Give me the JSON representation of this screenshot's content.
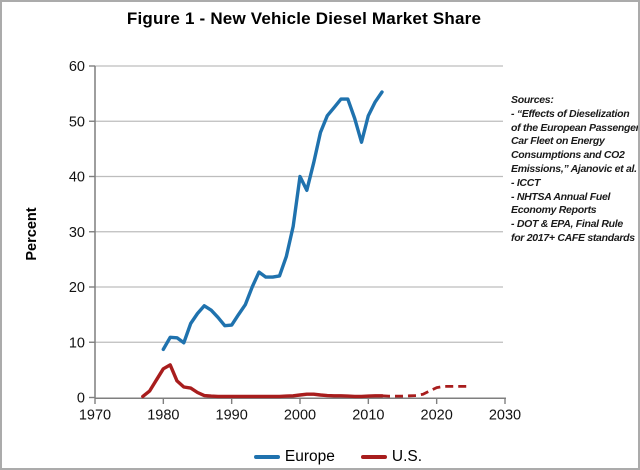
{
  "title": "Figure 1 - New Vehicle Diesel Market Share",
  "y_axis_title": "Percent",
  "legend": {
    "europe": "Europe",
    "us": "U.S."
  },
  "sources_text": "Sources:\n- “Effects of Dieselization\nof the European Passenger\nCar Fleet on Energy\nConsumptions and CO2\nEmissions,” Ajanovic et al.\n- ICCT\n- NHTSA Annual Fuel\nEconomy Reports\n- DOT & EPA, Final Rule\nfor 2017+ CAFE standards",
  "colors": {
    "europe_blue": "#1F72AE",
    "us_red": "#A81D1D",
    "gridline_gray": "#bdbdbd",
    "axis_gray": "#7f7f7f"
  },
  "chart_data": {
    "type": "line",
    "title": "Figure 1 - New Vehicle Diesel Market Share",
    "xlabel": "",
    "ylabel": "Percent",
    "xlim": [
      1970,
      2030
    ],
    "ylim": [
      0,
      60
    ],
    "x_ticks": [
      1970,
      1980,
      1990,
      2000,
      2010,
      2020,
      2030
    ],
    "y_ticks": [
      0,
      10,
      20,
      30,
      40,
      50,
      60
    ],
    "grid": "horizontal",
    "legend_position": "bottom",
    "series": [
      {
        "name": "Europe",
        "color": "#1F72AE",
        "style": "solid",
        "points": [
          [
            1980,
            8.7
          ],
          [
            1981,
            10.9
          ],
          [
            1982,
            10.8
          ],
          [
            1983,
            9.9
          ],
          [
            1984,
            13.4
          ],
          [
            1985,
            15.2
          ],
          [
            1986,
            16.6
          ],
          [
            1987,
            15.8
          ],
          [
            1988,
            14.5
          ],
          [
            1989,
            13.0
          ],
          [
            1990,
            13.1
          ],
          [
            1991,
            15.0
          ],
          [
            1992,
            16.8
          ],
          [
            1993,
            20.0
          ],
          [
            1994,
            22.7
          ],
          [
            1995,
            21.8
          ],
          [
            1996,
            21.8
          ],
          [
            1997,
            22.0
          ],
          [
            1998,
            25.5
          ],
          [
            1999,
            31.0
          ],
          [
            2000,
            40.0
          ],
          [
            2001,
            37.5
          ],
          [
            2002,
            42.5
          ],
          [
            2003,
            48.0
          ],
          [
            2004,
            51.0
          ],
          [
            2005,
            52.5
          ],
          [
            2006,
            54.0
          ],
          [
            2007,
            54.0
          ],
          [
            2008,
            50.5
          ],
          [
            2009,
            46.2
          ],
          [
            2010,
            51.0
          ],
          [
            2011,
            53.5
          ],
          [
            2012,
            55.3
          ]
        ]
      },
      {
        "name": "U.S.",
        "color": "#A81D1D",
        "style": "solid",
        "points": [
          [
            1977,
            0.2
          ],
          [
            1978,
            1.2
          ],
          [
            1979,
            3.2
          ],
          [
            1980,
            5.2
          ],
          [
            1981,
            5.9
          ],
          [
            1982,
            3.0
          ],
          [
            1983,
            1.9
          ],
          [
            1984,
            1.7
          ],
          [
            1985,
            0.9
          ],
          [
            1986,
            0.35
          ],
          [
            1987,
            0.25
          ],
          [
            1988,
            0.2
          ],
          [
            1989,
            0.2
          ],
          [
            1990,
            0.2
          ],
          [
            1991,
            0.2
          ],
          [
            1992,
            0.2
          ],
          [
            1993,
            0.2
          ],
          [
            1994,
            0.2
          ],
          [
            1995,
            0.2
          ],
          [
            1996,
            0.2
          ],
          [
            1997,
            0.2
          ],
          [
            1998,
            0.25
          ],
          [
            1999,
            0.3
          ],
          [
            2000,
            0.45
          ],
          [
            2001,
            0.6
          ],
          [
            2002,
            0.6
          ],
          [
            2003,
            0.45
          ],
          [
            2004,
            0.35
          ],
          [
            2005,
            0.3
          ],
          [
            2006,
            0.3
          ],
          [
            2007,
            0.25
          ],
          [
            2008,
            0.2
          ],
          [
            2009,
            0.2
          ],
          [
            2010,
            0.25
          ],
          [
            2011,
            0.3
          ],
          [
            2012,
            0.3
          ]
        ]
      },
      {
        "name": "U.S. projection",
        "color": "#A81D1D",
        "style": "dashed",
        "points": [
          [
            2012,
            0.3
          ],
          [
            2013,
            0.25
          ],
          [
            2014,
            0.25
          ],
          [
            2015,
            0.25
          ],
          [
            2016,
            0.3
          ],
          [
            2017,
            0.35
          ],
          [
            2018,
            0.6
          ],
          [
            2019,
            1.2
          ],
          [
            2020,
            1.8
          ],
          [
            2021,
            2.0
          ],
          [
            2022,
            2.0
          ],
          [
            2023,
            2.0
          ],
          [
            2024,
            2.0
          ],
          [
            2025,
            2.0
          ]
        ]
      }
    ]
  }
}
